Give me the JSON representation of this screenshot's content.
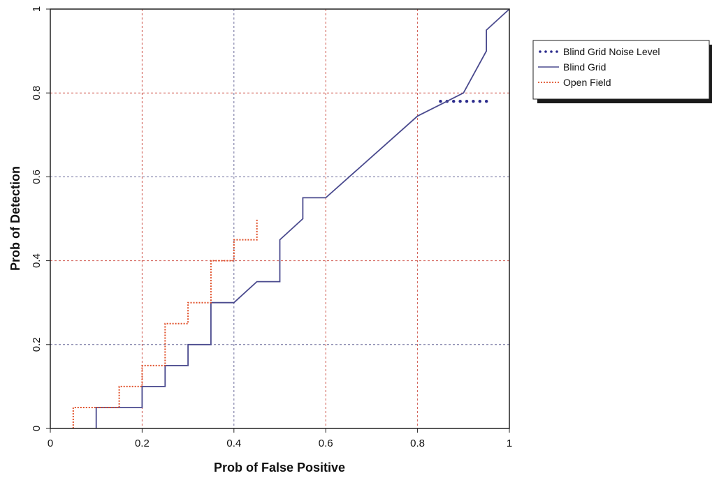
{
  "chart_data": {
    "type": "line",
    "xlabel": "Prob of False Positive",
    "ylabel": "Prob of Detection",
    "xlim": [
      0,
      1
    ],
    "ylim": [
      0,
      1
    ],
    "grid": true,
    "x_ticks": [
      "0",
      "0.2",
      "0.4",
      "0.6",
      "0.8",
      "1"
    ],
    "y_ticks": [
      "0",
      "0.2",
      "0.4",
      "0.6",
      "0.8",
      "1"
    ],
    "legend_position": "top-right, outside plot",
    "series": [
      {
        "name": "Blind Grid Noise Level",
        "style": "dotted-markers",
        "color": "#2b2b8c",
        "points": [
          [
            0.85,
            0.78
          ],
          [
            0.95,
            0.78
          ]
        ]
      },
      {
        "name": "Blind Grid",
        "style": "solid",
        "color": "#4a4a8e",
        "points": [
          [
            0.1,
            0
          ],
          [
            0.1,
            0.05
          ],
          [
            0.2,
            0.05
          ],
          [
            0.2,
            0.1
          ],
          [
            0.25,
            0.1
          ],
          [
            0.25,
            0.15
          ],
          [
            0.3,
            0.15
          ],
          [
            0.3,
            0.2
          ],
          [
            0.35,
            0.2
          ],
          [
            0.35,
            0.3
          ],
          [
            0.4,
            0.3
          ],
          [
            0.45,
            0.35
          ],
          [
            0.5,
            0.35
          ],
          [
            0.5,
            0.45
          ],
          [
            0.55,
            0.5
          ],
          [
            0.55,
            0.55
          ],
          [
            0.6,
            0.55
          ],
          [
            0.8,
            0.745
          ],
          [
            0.9,
            0.8
          ],
          [
            0.95,
            0.9
          ],
          [
            0.95,
            0.95
          ],
          [
            1.0,
            1.0
          ]
        ]
      },
      {
        "name": "Open Field",
        "style": "dotted",
        "color": "#e0502a",
        "points": [
          [
            0.05,
            0
          ],
          [
            0.05,
            0.05
          ],
          [
            0.15,
            0.05
          ],
          [
            0.15,
            0.1
          ],
          [
            0.2,
            0.1
          ],
          [
            0.2,
            0.15
          ],
          [
            0.25,
            0.15
          ],
          [
            0.25,
            0.25
          ],
          [
            0.3,
            0.25
          ],
          [
            0.3,
            0.3
          ],
          [
            0.35,
            0.3
          ],
          [
            0.35,
            0.4
          ],
          [
            0.4,
            0.4
          ],
          [
            0.4,
            0.45
          ],
          [
            0.45,
            0.45
          ],
          [
            0.45,
            0.5
          ]
        ]
      }
    ]
  },
  "colors": {
    "grid_blue": "#6a6a9a",
    "grid_red": "#d05a50",
    "axis": "#222222"
  }
}
